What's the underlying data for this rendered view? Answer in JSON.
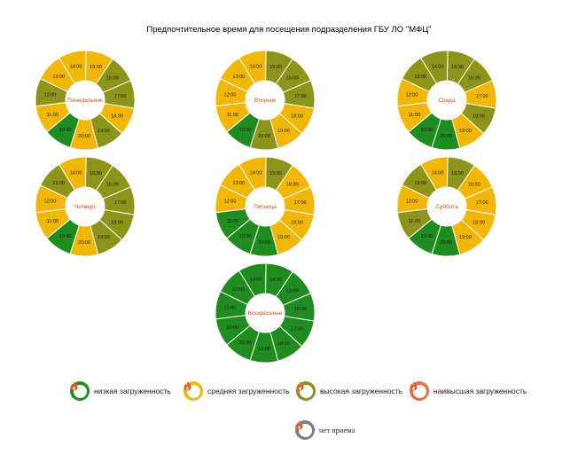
{
  "title": "Предпочтительное время для посещения подразделения ГБУ ЛО \"МФЦ\"",
  "colors": {
    "low": "#1f8c1f",
    "medium": "#f2b705",
    "high": "#8e9319",
    "highest": "#ee6a43",
    "closed": "#7d7d7d"
  },
  "legend": [
    {
      "key": "low",
      "label": "низкая загруженность"
    },
    {
      "key": "medium",
      "label": "средняя загруженность"
    },
    {
      "key": "high",
      "label": "высокая загруженность"
    },
    {
      "key": "highest",
      "label": "наивысшая загруженность"
    },
    {
      "key": "closed",
      "label": "нет приема"
    }
  ],
  "chart_data": {
    "type": "pie",
    "hours": [
      "12:00",
      "13:00",
      "14:00",
      "15:00",
      "16:00",
      "17:00",
      "18:00",
      "19:00",
      "20:00",
      "10:00",
      "11:00"
    ],
    "days": [
      {
        "day": "Понедельник",
        "labels": [
          "12:00",
          "13:00",
          "14:00",
          "15:00",
          "16:00",
          "17:00",
          "18:00",
          "19:00",
          "20:00",
          "10:00",
          "11:00"
        ],
        "load": [
          "high",
          "medium",
          "medium",
          "medium",
          "high",
          "high",
          "medium",
          "high",
          "medium",
          "low",
          "medium"
        ]
      },
      {
        "day": "Вторник",
        "labels": [
          "12:00",
          "13:00",
          "14:00",
          "15:00",
          "16:00",
          "17:00",
          "18:00",
          "19:00",
          "20:00",
          "10:00",
          "11:00"
        ],
        "load": [
          "medium",
          "medium",
          "medium",
          "high",
          "high",
          "high",
          "medium",
          "medium",
          "high",
          "low",
          "medium"
        ]
      },
      {
        "day": "Среда",
        "labels": [
          "12:00",
          "13:00",
          "14:00",
          "15:00",
          "16:00",
          "17:00",
          "18:00",
          "19:00",
          "20:00",
          "10:00",
          "11:00"
        ],
        "load": [
          "medium",
          "high",
          "high",
          "high",
          "high",
          "medium",
          "high",
          "medium",
          "low",
          "low",
          "medium"
        ]
      },
      {
        "day": "Четверг",
        "labels": [
          "12:00",
          "13:00",
          "14:00",
          "15:00",
          "16:00",
          "17:00",
          "18:00",
          "19:00",
          "20:00",
          "10:00",
          "11:00"
        ],
        "load": [
          "medium",
          "high",
          "medium",
          "high",
          "high",
          "high",
          "high",
          "high",
          "medium",
          "low",
          "medium"
        ]
      },
      {
        "day": "Пятница",
        "labels": [
          "12:00",
          "13:00",
          "14:00",
          "15:00",
          "16:00",
          "17:00",
          "18:00",
          "19:00",
          "20:00",
          "10:00",
          "11:00"
        ],
        "load": [
          "medium",
          "medium",
          "medium",
          "high",
          "medium",
          "medium",
          "medium",
          "medium",
          "low",
          "low",
          "low"
        ]
      },
      {
        "day": "Суббота",
        "labels": [
          "12:00",
          "13:00",
          "14:00",
          "15:00",
          "16:00",
          "17:00",
          "18:00",
          "19:00",
          "20:00",
          "10:00",
          "11:00"
        ],
        "load": [
          "medium",
          "high",
          "medium",
          "high",
          "medium",
          "medium",
          "medium",
          "medium",
          "low",
          "low",
          "high"
        ]
      },
      {
        "day": "Воскресенье",
        "labels": [
          "11:00",
          "12:00",
          "13:00",
          "14:00",
          "15:00",
          "16:00",
          "17:00",
          "18:00",
          "19:00",
          "20:00",
          "10:00"
        ],
        "load": [
          "low",
          "low",
          "low",
          "low",
          "low",
          "low",
          "low",
          "low",
          "low",
          "low",
          "low"
        ]
      }
    ]
  }
}
